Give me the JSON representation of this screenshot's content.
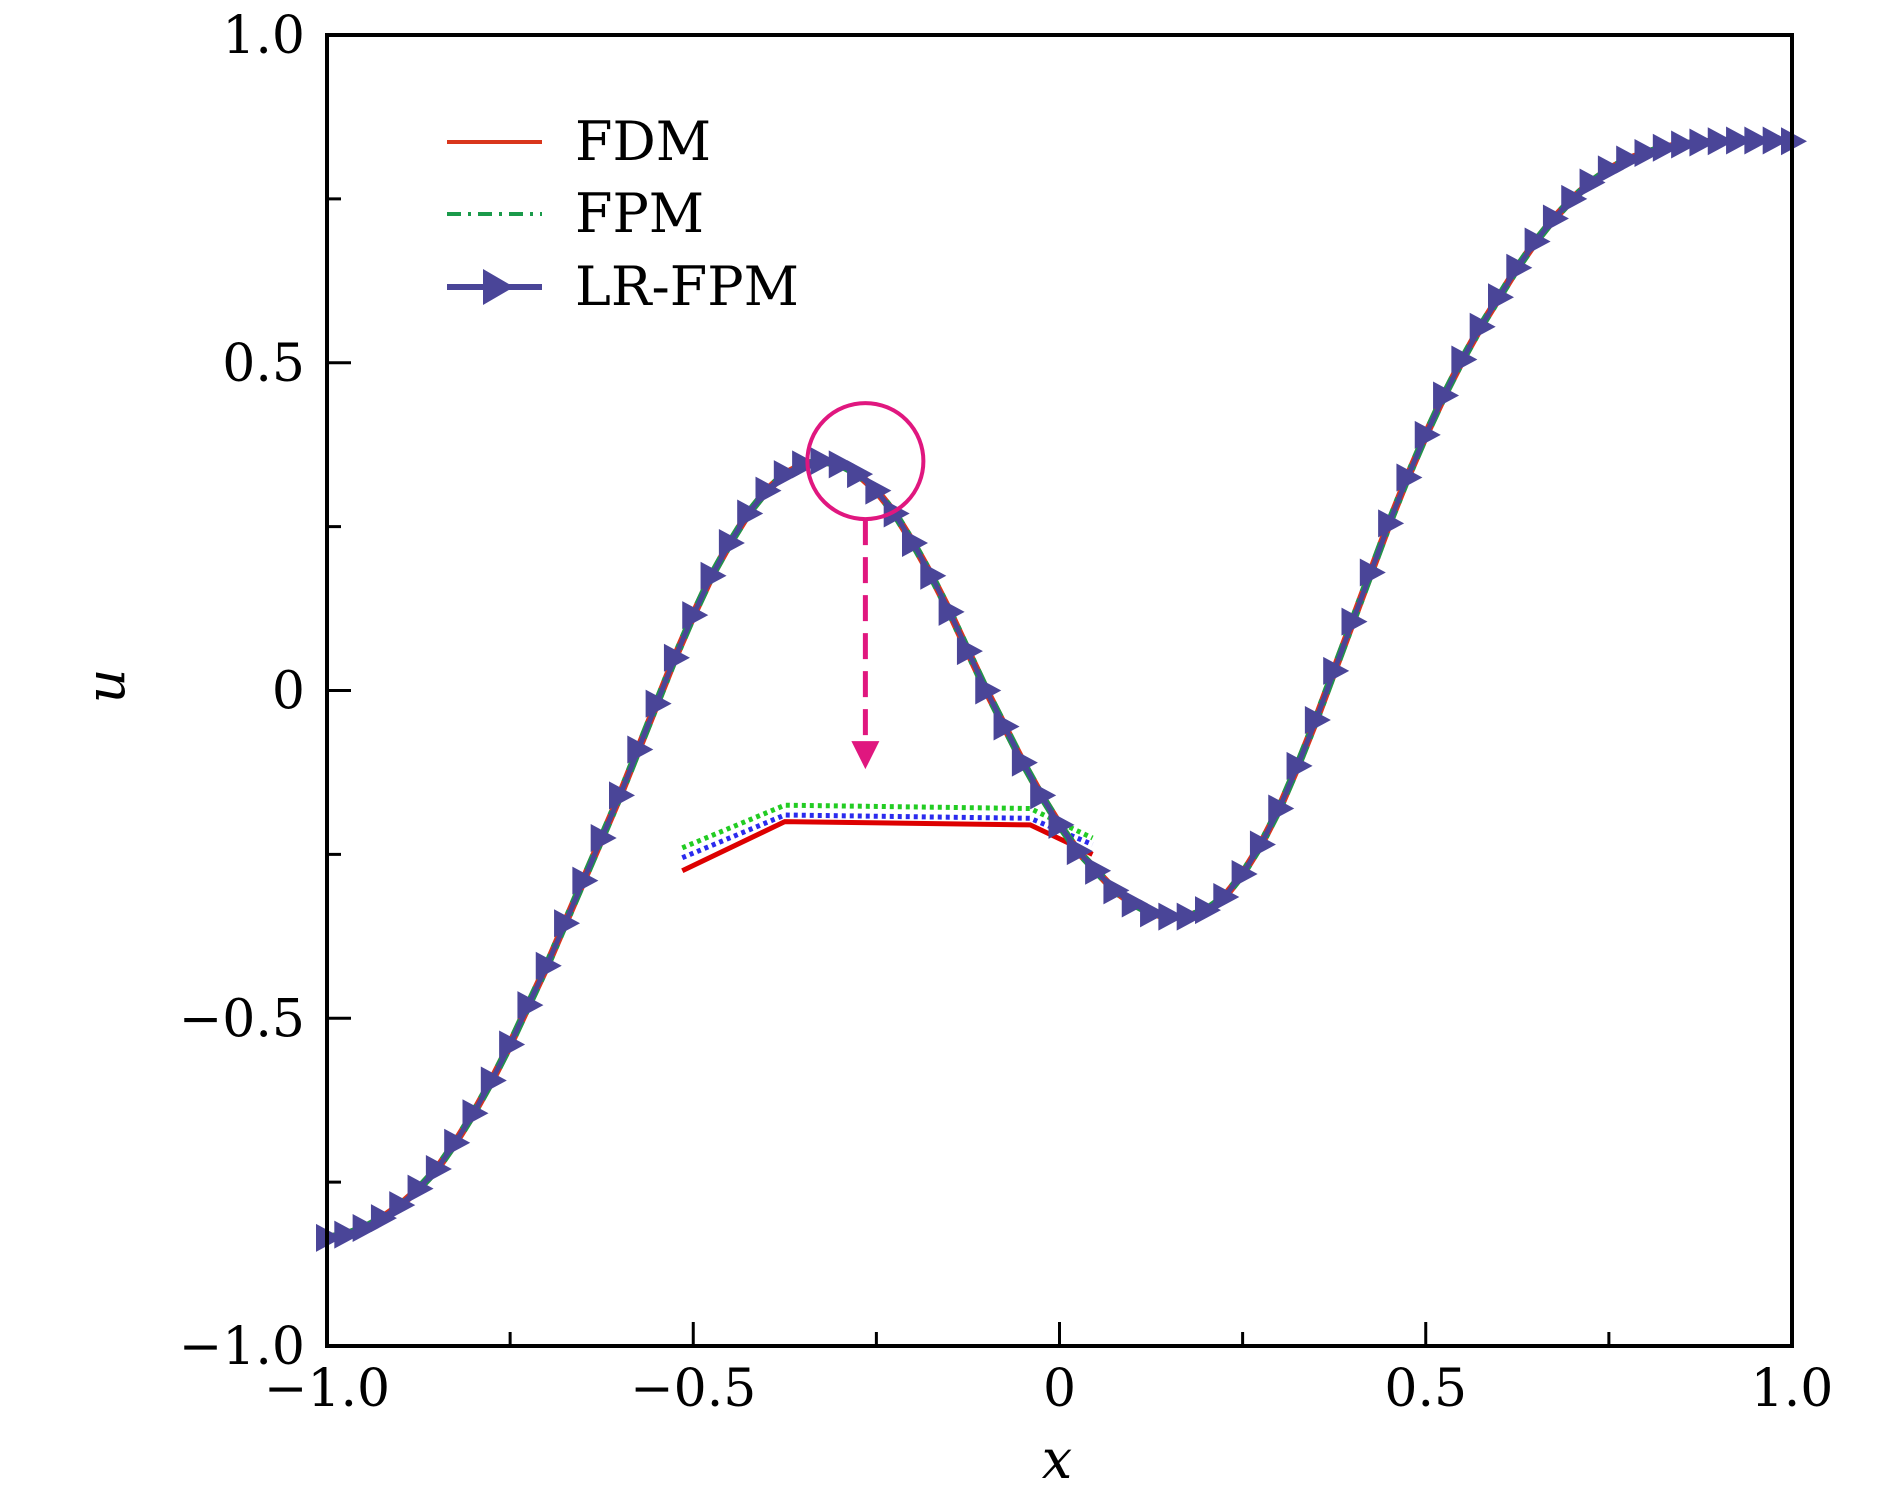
{
  "chart_data": {
    "type": "line",
    "title": "",
    "xlabel": "x",
    "ylabel": "u",
    "xlim": [
      -1.0,
      1.0
    ],
    "ylim": [
      -1.0,
      1.0
    ],
    "x_ticks": [
      -1.0,
      -0.5,
      0,
      0.5,
      1.0
    ],
    "y_ticks": [
      -1.0,
      -0.5,
      0,
      0.5,
      1.0
    ],
    "x_tick_labels": [
      "−1.0",
      "−0.5",
      "0",
      "0.5",
      "1.0"
    ],
    "y_tick_labels": [
      "−1.0",
      "−0.5",
      "0",
      "0.5",
      "1.0"
    ],
    "legend_position": "top-left",
    "grid": false,
    "x": [
      -1.0,
      -0.975,
      -0.95,
      -0.925,
      -0.9,
      -0.875,
      -0.85,
      -0.825,
      -0.8,
      -0.775,
      -0.75,
      -0.725,
      -0.7,
      -0.675,
      -0.65,
      -0.625,
      -0.6,
      -0.575,
      -0.55,
      -0.525,
      -0.5,
      -0.475,
      -0.45,
      -0.425,
      -0.4,
      -0.375,
      -0.35,
      -0.325,
      -0.3,
      -0.275,
      -0.25,
      -0.225,
      -0.2,
      -0.175,
      -0.15,
      -0.125,
      -0.1,
      -0.075,
      -0.05,
      -0.025,
      0.0,
      0.025,
      0.05,
      0.075,
      0.1,
      0.125,
      0.15,
      0.175,
      0.2,
      0.225,
      0.25,
      0.275,
      0.3,
      0.325,
      0.35,
      0.375,
      0.4,
      0.425,
      0.45,
      0.475,
      0.5,
      0.525,
      0.55,
      0.575,
      0.6,
      0.625,
      0.65,
      0.675,
      0.7,
      0.725,
      0.75,
      0.775,
      0.8,
      0.825,
      0.85,
      0.875,
      0.9,
      0.925,
      0.95,
      0.975,
      1.0
    ],
    "series": [
      {
        "name": "FDM",
        "color": "#d9361c",
        "style": "solid",
        "values": [
          -0.835,
          -0.83,
          -0.82,
          -0.805,
          -0.785,
          -0.76,
          -0.73,
          -0.69,
          -0.645,
          -0.595,
          -0.54,
          -0.48,
          -0.42,
          -0.355,
          -0.29,
          -0.225,
          -0.16,
          -0.09,
          -0.02,
          0.05,
          0.115,
          0.175,
          0.225,
          0.27,
          0.305,
          0.33,
          0.345,
          0.35,
          0.345,
          0.33,
          0.305,
          0.27,
          0.225,
          0.175,
          0.12,
          0.06,
          0.0,
          -0.055,
          -0.11,
          -0.16,
          -0.205,
          -0.245,
          -0.275,
          -0.305,
          -0.325,
          -0.34,
          -0.345,
          -0.345,
          -0.335,
          -0.315,
          -0.28,
          -0.235,
          -0.18,
          -0.115,
          -0.045,
          0.03,
          0.105,
          0.18,
          0.255,
          0.325,
          0.39,
          0.45,
          0.505,
          0.555,
          0.6,
          0.645,
          0.685,
          0.72,
          0.75,
          0.775,
          0.795,
          0.81,
          0.82,
          0.828,
          0.833,
          0.836,
          0.838,
          0.839,
          0.839,
          0.839,
          0.838
        ]
      },
      {
        "name": "FPM",
        "color": "#1a9a4a",
        "style": "dashdot",
        "values": [
          -0.835,
          -0.83,
          -0.82,
          -0.805,
          -0.785,
          -0.76,
          -0.73,
          -0.69,
          -0.645,
          -0.595,
          -0.54,
          -0.48,
          -0.42,
          -0.355,
          -0.29,
          -0.225,
          -0.16,
          -0.09,
          -0.02,
          0.05,
          0.115,
          0.175,
          0.225,
          0.27,
          0.305,
          0.33,
          0.345,
          0.35,
          0.345,
          0.33,
          0.305,
          0.27,
          0.225,
          0.175,
          0.12,
          0.06,
          0.0,
          -0.055,
          -0.11,
          -0.16,
          -0.205,
          -0.245,
          -0.275,
          -0.305,
          -0.325,
          -0.34,
          -0.345,
          -0.345,
          -0.335,
          -0.315,
          -0.28,
          -0.235,
          -0.18,
          -0.115,
          -0.045,
          0.03,
          0.105,
          0.18,
          0.255,
          0.325,
          0.39,
          0.45,
          0.505,
          0.555,
          0.6,
          0.645,
          0.685,
          0.72,
          0.75,
          0.775,
          0.795,
          0.81,
          0.82,
          0.828,
          0.833,
          0.836,
          0.838,
          0.839,
          0.839,
          0.839,
          0.838
        ]
      },
      {
        "name": "LR-FPM",
        "color": "#4a4598",
        "style": "solid-triangle-markers",
        "values": [
          -0.835,
          -0.83,
          -0.82,
          -0.805,
          -0.785,
          -0.76,
          -0.73,
          -0.69,
          -0.645,
          -0.595,
          -0.54,
          -0.48,
          -0.42,
          -0.355,
          -0.29,
          -0.225,
          -0.16,
          -0.09,
          -0.02,
          0.05,
          0.115,
          0.175,
          0.225,
          0.27,
          0.305,
          0.33,
          0.345,
          0.35,
          0.345,
          0.33,
          0.305,
          0.27,
          0.225,
          0.175,
          0.12,
          0.06,
          0.0,
          -0.055,
          -0.11,
          -0.16,
          -0.205,
          -0.245,
          -0.275,
          -0.305,
          -0.325,
          -0.34,
          -0.345,
          -0.345,
          -0.335,
          -0.315,
          -0.28,
          -0.235,
          -0.18,
          -0.115,
          -0.045,
          0.03,
          0.105,
          0.18,
          0.255,
          0.325,
          0.39,
          0.45,
          0.505,
          0.555,
          0.6,
          0.645,
          0.685,
          0.72,
          0.75,
          0.775,
          0.795,
          0.81,
          0.82,
          0.828,
          0.833,
          0.836,
          0.838,
          0.839,
          0.839,
          0.839,
          0.838
        ]
      }
    ],
    "inset": {
      "description_visible": false,
      "highlight_center": {
        "x": -0.265,
        "y": 0.35
      },
      "arrow_to": {
        "x": -0.265,
        "y": -0.12
      },
      "x": [
        -0.515,
        -0.375,
        -0.04,
        0.045
      ],
      "lines": [
        {
          "color": "#dd0000",
          "style": "solid",
          "values": [
            -0.275,
            -0.2,
            -0.205,
            -0.25
          ]
        },
        {
          "color": "#2a2aee",
          "style": "dotted",
          "values": [
            -0.255,
            -0.19,
            -0.195,
            -0.235
          ]
        },
        {
          "color": "#22cc22",
          "style": "dotted",
          "values": [
            -0.24,
            -0.175,
            -0.18,
            -0.225
          ]
        }
      ]
    },
    "annotation_color": "#e0177f"
  }
}
